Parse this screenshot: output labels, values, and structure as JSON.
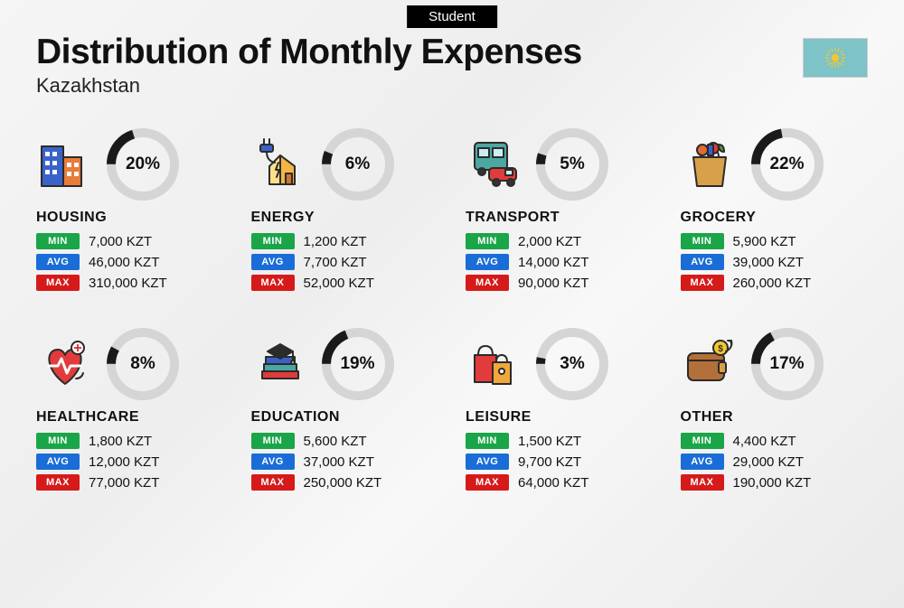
{
  "badge": "Student",
  "title": "Distribution of Monthly Expenses",
  "subtitle": "Kazakhstan",
  "currency": "KZT",
  "colors": {
    "min": "#1aa548",
    "avg": "#1a6dd6",
    "max": "#d61a1a",
    "donut_fill": "#1a1a1a",
    "donut_track": "#d5d5d5",
    "background": "#f2f2f2",
    "text": "#111111"
  },
  "labels": {
    "min": "MIN",
    "avg": "AVG",
    "max": "MAX"
  },
  "donut": {
    "size": 80,
    "stroke_width": 10
  },
  "flag": {
    "bg": "#7ec3c8",
    "sun": "#f3c72e"
  },
  "categories": [
    {
      "name": "HOUSING",
      "pct": 20,
      "min": "7,000",
      "avg": "46,000",
      "max": "310,000",
      "icon": "housing"
    },
    {
      "name": "ENERGY",
      "pct": 6,
      "min": "1,200",
      "avg": "7,700",
      "max": "52,000",
      "icon": "energy"
    },
    {
      "name": "TRANSPORT",
      "pct": 5,
      "min": "2,000",
      "avg": "14,000",
      "max": "90,000",
      "icon": "transport"
    },
    {
      "name": "GROCERY",
      "pct": 22,
      "min": "5,900",
      "avg": "39,000",
      "max": "260,000",
      "icon": "grocery"
    },
    {
      "name": "HEALTHCARE",
      "pct": 8,
      "min": "1,800",
      "avg": "12,000",
      "max": "77,000",
      "icon": "healthcare"
    },
    {
      "name": "EDUCATION",
      "pct": 19,
      "min": "5,600",
      "avg": "37,000",
      "max": "250,000",
      "icon": "education"
    },
    {
      "name": "LEISURE",
      "pct": 3,
      "min": "1,500",
      "avg": "9,700",
      "max": "64,000",
      "icon": "leisure"
    },
    {
      "name": "OTHER",
      "pct": 17,
      "min": "4,400",
      "avg": "29,000",
      "max": "190,000",
      "icon": "other"
    }
  ]
}
